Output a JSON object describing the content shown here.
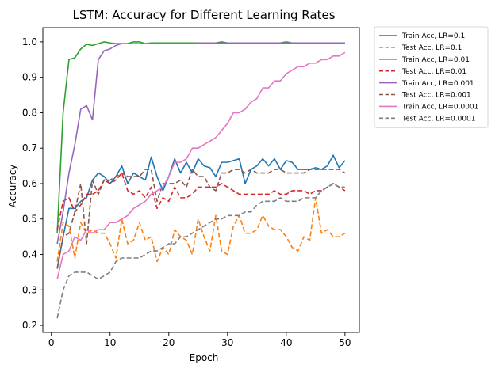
{
  "chart_data": {
    "type": "line",
    "title": "LSTM: Accuracy for Different Learning Rates",
    "xlabel": "Epoch",
    "ylabel": "Accuracy",
    "xlim": [
      -1.45,
      52.45
    ],
    "ylim": [
      0.18,
      1.04
    ],
    "xticks": [
      0,
      10,
      20,
      30,
      40,
      50
    ],
    "yticks": [
      0.2,
      0.3,
      0.4,
      0.5,
      0.6,
      0.7,
      0.8,
      0.9,
      1.0
    ],
    "ytick_labels": [
      "0.2",
      "0.3",
      "0.4",
      "0.5",
      "0.6",
      "0.7",
      "0.8",
      "0.9",
      "1.0"
    ],
    "grid": false,
    "legend_position": "outside-top-right",
    "x": [
      1,
      2,
      3,
      4,
      5,
      6,
      7,
      8,
      9,
      10,
      11,
      12,
      13,
      14,
      15,
      16,
      17,
      18,
      19,
      20,
      21,
      22,
      23,
      24,
      25,
      26,
      27,
      28,
      29,
      30,
      31,
      32,
      33,
      34,
      35,
      36,
      37,
      38,
      39,
      40,
      41,
      42,
      43,
      44,
      45,
      46,
      47,
      48,
      49,
      50
    ],
    "series": [
      {
        "name": "Train Acc, LR=0.1",
        "color": "#1f77b4",
        "dash": "solid",
        "values": [
          0.36,
          0.45,
          0.53,
          0.53,
          0.55,
          0.56,
          0.61,
          0.63,
          0.62,
          0.6,
          0.62,
          0.65,
          0.6,
          0.63,
          0.62,
          0.61,
          0.675,
          0.62,
          0.58,
          0.62,
          0.67,
          0.63,
          0.66,
          0.63,
          0.67,
          0.65,
          0.645,
          0.62,
          0.66,
          0.66,
          0.665,
          0.67,
          0.6,
          0.64,
          0.65,
          0.67,
          0.65,
          0.67,
          0.64,
          0.665,
          0.66,
          0.64,
          0.64,
          0.64,
          0.645,
          0.64,
          0.65,
          0.68,
          0.645,
          0.665
        ]
      },
      {
        "name": "Test Acc, LR=0.1",
        "color": "#ff7f0e",
        "dash": "dashed",
        "values": [
          0.38,
          0.49,
          0.48,
          0.39,
          0.49,
          0.46,
          0.47,
          0.46,
          0.46,
          0.43,
          0.39,
          0.5,
          0.43,
          0.44,
          0.49,
          0.44,
          0.45,
          0.38,
          0.42,
          0.4,
          0.47,
          0.45,
          0.44,
          0.4,
          0.5,
          0.45,
          0.41,
          0.51,
          0.41,
          0.4,
          0.48,
          0.51,
          0.46,
          0.46,
          0.47,
          0.51,
          0.48,
          0.47,
          0.47,
          0.45,
          0.42,
          0.41,
          0.45,
          0.44,
          0.56,
          0.46,
          0.47,
          0.45,
          0.45,
          0.46
        ]
      },
      {
        "name": "Train Acc, LR=0.01",
        "color": "#2ca02c",
        "dash": "solid",
        "values": [
          0.46,
          0.8,
          0.95,
          0.955,
          0.98,
          0.993,
          0.99,
          0.995,
          1.0,
          0.997,
          0.995,
          0.995,
          0.995,
          1.0,
          1.0,
          0.995,
          0.997,
          0.997,
          0.997,
          0.997,
          0.997,
          0.997,
          0.997,
          0.997,
          0.997,
          0.997,
          0.997,
          0.997,
          1.0,
          0.997,
          0.997,
          0.995,
          0.997,
          0.997,
          0.997,
          0.997,
          0.995,
          0.997,
          0.997,
          1.0,
          0.997,
          0.997,
          0.997,
          0.997,
          0.997,
          0.997,
          0.997,
          0.997,
          0.997,
          0.997
        ]
      },
      {
        "name": "Test Acc, LR=0.01",
        "color": "#d62728",
        "dash": "dashed",
        "values": [
          0.47,
          0.55,
          0.56,
          0.52,
          0.54,
          0.57,
          0.57,
          0.58,
          0.61,
          0.6,
          0.61,
          0.63,
          0.58,
          0.57,
          0.58,
          0.56,
          0.59,
          0.53,
          0.56,
          0.55,
          0.59,
          0.56,
          0.56,
          0.57,
          0.59,
          0.59,
          0.59,
          0.59,
          0.6,
          0.59,
          0.58,
          0.57,
          0.57,
          0.57,
          0.57,
          0.57,
          0.57,
          0.58,
          0.57,
          0.57,
          0.58,
          0.58,
          0.58,
          0.57,
          0.58,
          0.58,
          0.59,
          0.6,
          0.59,
          0.58
        ]
      },
      {
        "name": "Train Acc, LR=0.001",
        "color": "#9467bd",
        "dash": "solid",
        "values": [
          0.43,
          0.52,
          0.63,
          0.71,
          0.81,
          0.82,
          0.78,
          0.95,
          0.975,
          0.98,
          0.99,
          0.995,
          0.995,
          0.995,
          0.995,
          0.995,
          0.995,
          0.995,
          0.995,
          0.995,
          0.995,
          0.995,
          0.995,
          0.995,
          0.997,
          0.997,
          0.997,
          0.997,
          0.997,
          0.997,
          0.997,
          0.997,
          0.997,
          0.997,
          0.997,
          0.997,
          0.997,
          0.997,
          0.997,
          0.997,
          0.997,
          0.997,
          0.997,
          0.997,
          0.997,
          0.997,
          0.997,
          0.997,
          0.997,
          0.997
        ]
      },
      {
        "name": "Test Acc, LR=0.001",
        "color": "#8c564b",
        "dash": "dashed",
        "values": [
          0.36,
          0.45,
          0.46,
          0.52,
          0.6,
          0.43,
          0.61,
          0.57,
          0.61,
          0.61,
          0.62,
          0.63,
          0.62,
          0.62,
          0.62,
          0.64,
          0.64,
          0.55,
          0.6,
          0.6,
          0.6,
          0.61,
          0.59,
          0.64,
          0.62,
          0.62,
          0.59,
          0.58,
          0.63,
          0.63,
          0.64,
          0.64,
          0.63,
          0.64,
          0.63,
          0.63,
          0.63,
          0.64,
          0.64,
          0.63,
          0.63,
          0.63,
          0.63,
          0.64,
          0.64,
          0.64,
          0.64,
          0.64,
          0.64,
          0.63
        ]
      },
      {
        "name": "Train Acc, LR=0.0001",
        "color": "#e377c2",
        "dash": "solid",
        "values": [
          0.33,
          0.4,
          0.41,
          0.45,
          0.44,
          0.47,
          0.46,
          0.47,
          0.47,
          0.49,
          0.49,
          0.5,
          0.51,
          0.53,
          0.54,
          0.55,
          0.57,
          0.58,
          0.59,
          0.62,
          0.66,
          0.66,
          0.67,
          0.7,
          0.7,
          0.71,
          0.72,
          0.73,
          0.75,
          0.77,
          0.8,
          0.8,
          0.81,
          0.83,
          0.84,
          0.87,
          0.87,
          0.89,
          0.89,
          0.91,
          0.92,
          0.93,
          0.93,
          0.94,
          0.94,
          0.95,
          0.95,
          0.96,
          0.96,
          0.97
        ]
      },
      {
        "name": "Test Acc, LR=0.0001",
        "color": "#7f7f7f",
        "dash": "dashed",
        "values": [
          0.22,
          0.3,
          0.34,
          0.35,
          0.35,
          0.35,
          0.34,
          0.33,
          0.34,
          0.35,
          0.38,
          0.39,
          0.39,
          0.39,
          0.39,
          0.4,
          0.41,
          0.41,
          0.42,
          0.43,
          0.43,
          0.45,
          0.45,
          0.46,
          0.47,
          0.48,
          0.49,
          0.5,
          0.5,
          0.51,
          0.51,
          0.51,
          0.52,
          0.52,
          0.54,
          0.55,
          0.55,
          0.55,
          0.56,
          0.55,
          0.55,
          0.55,
          0.56,
          0.56,
          0.56,
          0.58,
          0.59,
          0.6,
          0.59,
          0.59
        ]
      }
    ]
  }
}
